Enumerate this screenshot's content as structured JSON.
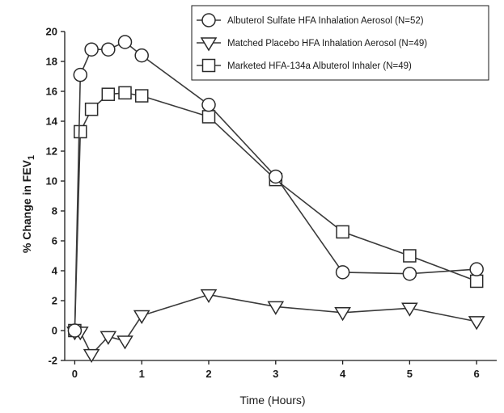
{
  "chart_data": {
    "type": "line",
    "title": "",
    "xlabel": "Time (Hours)",
    "ylabel_main": "% Change in FEV",
    "ylabel_sub": "1",
    "xlim": [
      -0.15,
      6.3
    ],
    "ylim": [
      -2,
      20
    ],
    "xticks": [
      0,
      1,
      2,
      3,
      4,
      5,
      6
    ],
    "yticks": [
      -2,
      0,
      2,
      4,
      6,
      8,
      10,
      12,
      14,
      16,
      18,
      20
    ],
    "grid": false,
    "legend_position": "top-right",
    "series": [
      {
        "name": "Albuterol Sulfate HFA Inhalation Aerosol (N=52)",
        "marker": "circle",
        "x": [
          0,
          0.083,
          0.25,
          0.5,
          0.75,
          1,
          2,
          3,
          4,
          5,
          6
        ],
        "y": [
          0,
          17.1,
          18.8,
          18.8,
          19.3,
          18.4,
          15.1,
          10.3,
          3.9,
          3.8,
          4.1
        ]
      },
      {
        "name": "Matched Placebo HFA Inhalation Aerosol (N=49)",
        "marker": "triangle-down",
        "x": [
          0,
          0.083,
          0.25,
          0.5,
          0.75,
          1,
          2,
          3,
          4,
          5,
          6
        ],
        "y": [
          -0.1,
          -0.1,
          -1.6,
          -0.4,
          -0.7,
          1.0,
          2.4,
          1.6,
          1.2,
          1.5,
          0.6
        ]
      },
      {
        "name": "Marketed HFA-134a Albuterol Inhaler (N=49)",
        "marker": "square",
        "x": [
          0,
          0.083,
          0.25,
          0.5,
          0.75,
          1,
          2,
          3,
          4,
          5,
          6
        ],
        "y": [
          0,
          13.3,
          14.8,
          15.8,
          15.9,
          15.7,
          14.3,
          10.1,
          6.6,
          5.0,
          3.3
        ]
      }
    ]
  }
}
